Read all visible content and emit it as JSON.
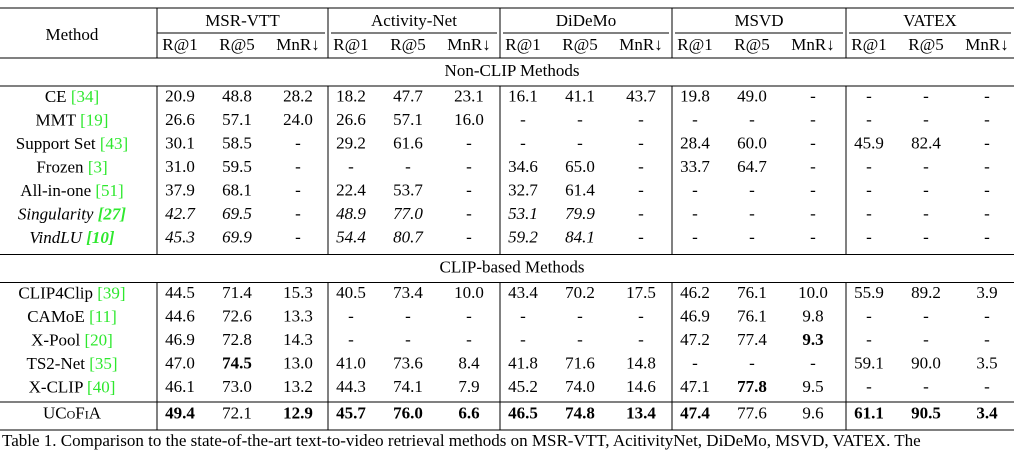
{
  "table": {
    "method_header": "Method",
    "groups": [
      {
        "name": "MSR-VTT",
        "metrics": [
          "R@1",
          "R@5",
          "MnR↓"
        ]
      },
      {
        "name": "Activity-Net",
        "metrics": [
          "R@1",
          "R@5",
          "MnR↓"
        ]
      },
      {
        "name": "DiDeMo",
        "metrics": [
          "R@1",
          "R@5",
          "MnR↓"
        ]
      },
      {
        "name": "MSVD",
        "metrics": [
          "R@1",
          "R@5",
          "MnR↓"
        ]
      },
      {
        "name": "VATEX",
        "metrics": [
          "R@1",
          "R@5",
          "MnR↓"
        ]
      }
    ],
    "sections": [
      {
        "title": "Non-CLIP Methods",
        "rows": [
          {
            "method": "CE",
            "ref": "[34]",
            "cells": [
              "20.9",
              "48.8",
              "28.2",
              "18.2",
              "47.7",
              "23.1",
              "16.1",
              "41.1",
              "43.7",
              "19.8",
              "49.0",
              "-",
              "-",
              "-",
              "-"
            ]
          },
          {
            "method": "MMT",
            "ref": "[19]",
            "cells": [
              "26.6",
              "57.1",
              "24.0",
              "26.6",
              "57.1",
              "16.0",
              "-",
              "-",
              "-",
              "-",
              "-",
              "-",
              "-",
              "-",
              "-"
            ]
          },
          {
            "method": "Support Set",
            "ref": "[43]",
            "cells": [
              "30.1",
              "58.5",
              "-",
              "29.2",
              "61.6",
              "-",
              "-",
              "-",
              "-",
              "28.4",
              "60.0",
              "-",
              "45.9",
              "82.4",
              "-"
            ]
          },
          {
            "method": "Frozen",
            "ref": "[3]",
            "cells": [
              "31.0",
              "59.5",
              "-",
              "-",
              "-",
              "-",
              "34.6",
              "65.0",
              "-",
              "33.7",
              "64.7",
              "-",
              "-",
              "-",
              "-"
            ]
          },
          {
            "method": "All-in-one",
            "ref": "[51]",
            "cells": [
              "37.9",
              "68.1",
              "-",
              "22.4",
              "53.7",
              "-",
              "32.7",
              "61.4",
              "-",
              "-",
              "-",
              "-",
              "-",
              "-",
              "-"
            ]
          },
          {
            "method": "Singularity",
            "ref": "[27]",
            "muted": true,
            "cells": [
              "42.7",
              "69.5",
              "-",
              "48.9",
              "77.0",
              "-",
              "53.1",
              "79.9",
              "-",
              "-",
              "-",
              "-",
              "-",
              "-",
              "-"
            ]
          },
          {
            "method": "VindLU",
            "ref": "[10]",
            "muted": true,
            "cells": [
              "45.3",
              "69.9",
              "-",
              "54.4",
              "80.7",
              "-",
              "59.2",
              "84.1",
              "-",
              "-",
              "-",
              "-",
              "-",
              "-",
              "-"
            ]
          }
        ]
      },
      {
        "title": "CLIP-based Methods",
        "rows": [
          {
            "method": "CLIP4Clip",
            "ref": "[39]",
            "cells": [
              "44.5",
              "71.4",
              "15.3",
              "40.5",
              "73.4",
              "10.0",
              "43.4",
              "70.2",
              "17.5",
              "46.2",
              "76.1",
              "10.0",
              "55.9",
              "89.2",
              "3.9"
            ]
          },
          {
            "method": "CAMoE",
            "ref": "[11]",
            "cells": [
              "44.6",
              "72.6",
              "13.3",
              "-",
              "-",
              "-",
              "-",
              "-",
              "-",
              "46.9",
              "76.1",
              "9.8",
              "-",
              "-",
              "-"
            ]
          },
          {
            "method": "X-Pool",
            "ref": "[20]",
            "bold": [
              11
            ],
            "cells": [
              "46.9",
              "72.8",
              "14.3",
              "-",
              "-",
              "-",
              "-",
              "-",
              "-",
              "47.2",
              "77.4",
              "9.3",
              "-",
              "-",
              "-"
            ]
          },
          {
            "method": "TS2-Net",
            "ref": "[35]",
            "bold": [
              1
            ],
            "cells": [
              "47.0",
              "74.5",
              "13.0",
              "41.0",
              "73.6",
              "8.4",
              "41.8",
              "71.6",
              "14.8",
              "-",
              "-",
              "-",
              "59.1",
              "90.0",
              "3.5"
            ]
          },
          {
            "method": "X-CLIP",
            "ref": "[40]",
            "bold": [
              10
            ],
            "cells": [
              "46.1",
              "73.0",
              "13.2",
              "44.3",
              "74.1",
              "7.9",
              "45.2",
              "74.0",
              "14.6",
              "47.1",
              "77.8",
              "9.5",
              "-",
              "-",
              "-"
            ]
          },
          {
            "method": "UCoFiA",
            "smallcaps": true,
            "bold": [
              0,
              2,
              3,
              4,
              5,
              6,
              7,
              8,
              9,
              12,
              13,
              14
            ],
            "cells": [
              "49.4",
              "72.1",
              "12.9",
              "45.7",
              "76.0",
              "6.6",
              "46.5",
              "74.8",
              "13.4",
              "47.4",
              "77.6",
              "9.6",
              "61.1",
              "90.5",
              "3.4"
            ]
          }
        ]
      }
    ]
  },
  "caption": "Table 1. Comparison to the state-of-the-art text-to-video retrieval methods on MSR-VTT, AcitivityNet, DiDeMo, MSVD, VATEX. The"
}
